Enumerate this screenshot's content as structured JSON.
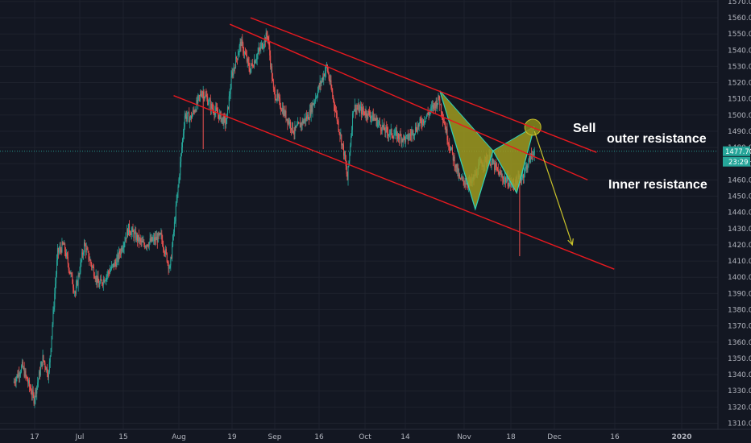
{
  "chart_data": {
    "type": "candlestick",
    "instrument_note": "",
    "y_axis": {
      "ylim": [
        1305,
        1570
      ],
      "ticks": [
        "1310.00",
        "1320.00",
        "1330.00",
        "1340.00",
        "1350.00",
        "1360.00",
        "1370.00",
        "1380.00",
        "1390.00",
        "1400.00",
        "1410.00",
        "1420.00",
        "1430.00",
        "1440.00",
        "1450.00",
        "1460.00",
        "1470.00",
        "1480.00",
        "1490.00",
        "1500.00",
        "1510.00",
        "1520.00",
        "1530.00",
        "1540.00",
        "1550.00",
        "1560.00",
        "1570.00"
      ],
      "position": "right"
    },
    "x_axis": {
      "tick_labels": [
        "17",
        "Jul",
        "15",
        "Aug",
        "19",
        "Sep",
        "16",
        "Oct",
        "14",
        "Nov",
        "18",
        "Dec",
        "16",
        "2020"
      ]
    },
    "price_line": {
      "value": 1477.7,
      "label": "1477.70",
      "sub_label": "23:29",
      "color": "#26a69a"
    },
    "price_series_keypoints": [
      {
        "x": "Jun 10",
        "y": 1335
      },
      {
        "x": "Jun 13",
        "y": 1345
      },
      {
        "x": "Jun 17",
        "y": 1325
      },
      {
        "x": "Jun 20",
        "y": 1350
      },
      {
        "x": "Jun 22",
        "y": 1340
      },
      {
        "x": "Jun 24",
        "y": 1390
      },
      {
        "x": "Jun 25",
        "y": 1415
      },
      {
        "x": "Jun 27",
        "y": 1420
      },
      {
        "x": "Jul 1",
        "y": 1390
      },
      {
        "x": "Jul 4",
        "y": 1420
      },
      {
        "x": "Jul 9",
        "y": 1395
      },
      {
        "x": "Jul 15",
        "y": 1410
      },
      {
        "x": "Jul 19",
        "y": 1430
      },
      {
        "x": "Jul 24",
        "y": 1420
      },
      {
        "x": "Jul 30",
        "y": 1425
      },
      {
        "x": "Aug 2",
        "y": 1405
      },
      {
        "x": "Aug 5",
        "y": 1460
      },
      {
        "x": "Aug 7",
        "y": 1500
      },
      {
        "x": "Aug 9",
        "y": 1498
      },
      {
        "x": "Aug 13",
        "y": 1515
      },
      {
        "x": "Aug 16",
        "y": 1505
      },
      {
        "x": "Aug 21",
        "y": 1495
      },
      {
        "x": "Aug 23",
        "y": 1525
      },
      {
        "x": "Aug 26",
        "y": 1545
      },
      {
        "x": "Aug 29",
        "y": 1528
      },
      {
        "x": "Sep 4",
        "y": 1550
      },
      {
        "x": "Sep 6",
        "y": 1515
      },
      {
        "x": "Sep 10",
        "y": 1500
      },
      {
        "x": "Sep 13",
        "y": 1490
      },
      {
        "x": "Sep 18",
        "y": 1500
      },
      {
        "x": "Sep 24",
        "y": 1530
      },
      {
        "x": "Sep 30",
        "y": 1475
      },
      {
        "x": "Oct 1",
        "y": 1460
      },
      {
        "x": "Oct 3",
        "y": 1505
      },
      {
        "x": "Oct 9",
        "y": 1500
      },
      {
        "x": "Oct 14",
        "y": 1490
      },
      {
        "x": "Oct 21",
        "y": 1485
      },
      {
        "x": "Oct 28",
        "y": 1500
      },
      {
        "x": "Nov 1",
        "y": 1510
      },
      {
        "x": "Nov 4",
        "y": 1485
      },
      {
        "x": "Nov 8",
        "y": 1460
      },
      {
        "x": "Nov 12",
        "y": 1458
      },
      {
        "x": "Nov 15",
        "y": 1470
      },
      {
        "x": "Nov 18",
        "y": 1473
      },
      {
        "x": "Nov 22",
        "y": 1462
      },
      {
        "x": "Nov 26",
        "y": 1457
      },
      {
        "x": "Nov 29",
        "y": 1462
      },
      {
        "x": "Dec 3",
        "y": 1478
      }
    ],
    "annotations": [
      {
        "text": "Sell",
        "color": "#ffffff"
      },
      {
        "text": "outer resistance",
        "color": "#ffffff"
      },
      {
        "text": "Inner resistance",
        "color": "#ffffff"
      }
    ],
    "harmonic_pattern": {
      "points": [
        {
          "x": "Nov 1",
          "y": 1515
        },
        {
          "x": "Nov 13",
          "y": 1442
        },
        {
          "x": "Nov 19",
          "y": 1478
        },
        {
          "x": "Nov 27",
          "y": 1452
        },
        {
          "x": "Dec 3",
          "y": 1493
        }
      ],
      "fill": "#9f9a1e",
      "line": "#2ed3b7"
    },
    "trend_lines_color": "#e8191f",
    "grid": true,
    "legend": "none"
  }
}
